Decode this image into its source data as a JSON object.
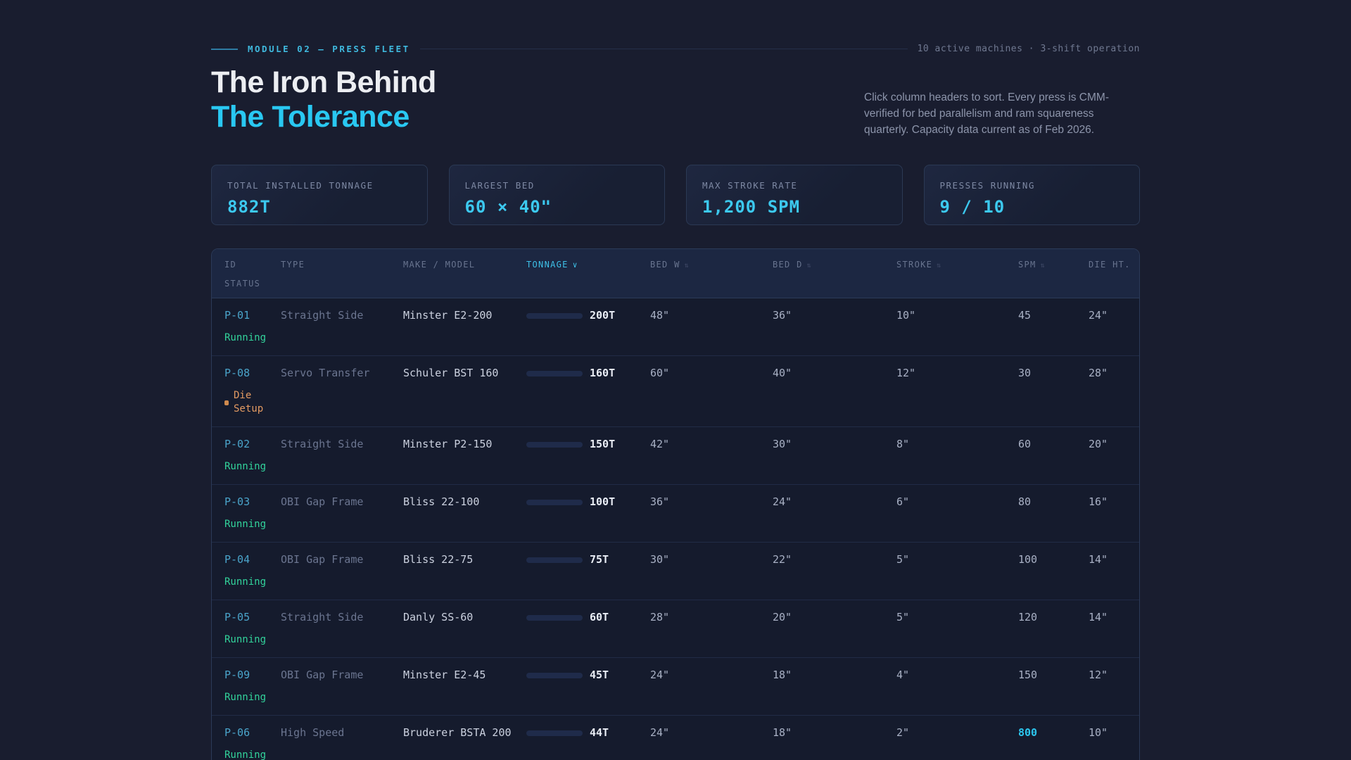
{
  "page": {
    "module_label": "MODULE 02 — PRESS FLEET",
    "module_meta": "10 active machines · 3-shift operation",
    "title_line1": "The Iron Behind",
    "title_line2": "The Tolerance",
    "description": "Click column headers to sort. Every press is CMM-verified for bed parallelism and ram squareness quarterly. Capacity data current as of Feb 2026."
  },
  "colors": {
    "accent_cyan": "#29c8f2",
    "value_cyan": "#3cc9ef",
    "running_green": "#32d49c",
    "setup_orange": "#e29a62",
    "background": "#191d2f",
    "card_border": "#2b3954"
  },
  "stats": [
    {
      "label": "TOTAL INSTALLED TONNAGE",
      "value": "882T"
    },
    {
      "label": "LARGEST BED",
      "value": "60 × 40\""
    },
    {
      "label": "MAX STROKE RATE",
      "value": "1,200 SPM"
    },
    {
      "label": "PRESSES RUNNING",
      "value": "9 / 10"
    }
  ],
  "table": {
    "tonnage_bar_max": 200,
    "columns": [
      {
        "key": "id",
        "label": "ID",
        "sort": "none"
      },
      {
        "key": "type",
        "label": "TYPE",
        "sort": "none"
      },
      {
        "key": "make",
        "label": "MAKE / MODEL",
        "sort": "none"
      },
      {
        "key": "tonnage",
        "label": "TONNAGE",
        "sort": "active-desc"
      },
      {
        "key": "bed_w",
        "label": "BED W",
        "sort": "sortable"
      },
      {
        "key": "bed_d",
        "label": "BED D",
        "sort": "sortable"
      },
      {
        "key": "stroke",
        "label": "STROKE",
        "sort": "sortable"
      },
      {
        "key": "spm",
        "label": "SPM",
        "sort": "sortable"
      },
      {
        "key": "die_ht",
        "label": "DIE HT.",
        "sort": "none"
      },
      {
        "key": "status",
        "label": "STATUS",
        "sort": "none"
      }
    ],
    "rows": [
      {
        "id": "P-01",
        "type": "Straight Side",
        "make_model": "Minster E2-200",
        "tonnage_t": 200,
        "tonnage_label": "200T",
        "bed_w": "48\"",
        "bed_d": "36\"",
        "stroke": "10\"",
        "spm": "45",
        "die_ht": "24\"",
        "status": "Running",
        "status_kind": "running",
        "spm_highlight": false
      },
      {
        "id": "P-08",
        "type": "Servo Transfer",
        "make_model": "Schuler BST 160",
        "tonnage_t": 160,
        "tonnage_label": "160T",
        "bed_w": "60\"",
        "bed_d": "40\"",
        "stroke": "12\"",
        "spm": "30",
        "die_ht": "28\"",
        "status": "Die Setup",
        "status_kind": "die-setup",
        "spm_highlight": false
      },
      {
        "id": "P-02",
        "type": "Straight Side",
        "make_model": "Minster P2-150",
        "tonnage_t": 150,
        "tonnage_label": "150T",
        "bed_w": "42\"",
        "bed_d": "30\"",
        "stroke": "8\"",
        "spm": "60",
        "die_ht": "20\"",
        "status": "Running",
        "status_kind": "running",
        "spm_highlight": false
      },
      {
        "id": "P-03",
        "type": "OBI Gap Frame",
        "make_model": "Bliss 22-100",
        "tonnage_t": 100,
        "tonnage_label": "100T",
        "bed_w": "36\"",
        "bed_d": "24\"",
        "stroke": "6\"",
        "spm": "80",
        "die_ht": "16\"",
        "status": "Running",
        "status_kind": "running",
        "spm_highlight": false
      },
      {
        "id": "P-04",
        "type": "OBI Gap Frame",
        "make_model": "Bliss 22-75",
        "tonnage_t": 75,
        "tonnage_label": "75T",
        "bed_w": "30\"",
        "bed_d": "22\"",
        "stroke": "5\"",
        "spm": "100",
        "die_ht": "14\"",
        "status": "Running",
        "status_kind": "running",
        "spm_highlight": false
      },
      {
        "id": "P-05",
        "type": "Straight Side",
        "make_model": "Danly SS-60",
        "tonnage_t": 60,
        "tonnage_label": "60T",
        "bed_w": "28\"",
        "bed_d": "20\"",
        "stroke": "5\"",
        "spm": "120",
        "die_ht": "14\"",
        "status": "Running",
        "status_kind": "running",
        "spm_highlight": false
      },
      {
        "id": "P-09",
        "type": "OBI Gap Frame",
        "make_model": "Minster E2-45",
        "tonnage_t": 45,
        "tonnage_label": "45T",
        "bed_w": "24\"",
        "bed_d": "18\"",
        "stroke": "4\"",
        "spm": "150",
        "die_ht": "12\"",
        "status": "Running",
        "status_kind": "running",
        "spm_highlight": false
      },
      {
        "id": "P-06",
        "type": "High Speed",
        "make_model": "Bruderer BSTA 200",
        "tonnage_t": 44,
        "tonnage_label": "44T",
        "bed_w": "24\"",
        "bed_d": "18\"",
        "stroke": "2\"",
        "spm": "800",
        "die_ht": "10\"",
        "status": "Running",
        "status_kind": "running",
        "spm_highlight": true
      }
    ]
  },
  "icons": {
    "sort_active_desc": "∨",
    "sort_idle": "⇅",
    "status_dot": "status-dot"
  }
}
